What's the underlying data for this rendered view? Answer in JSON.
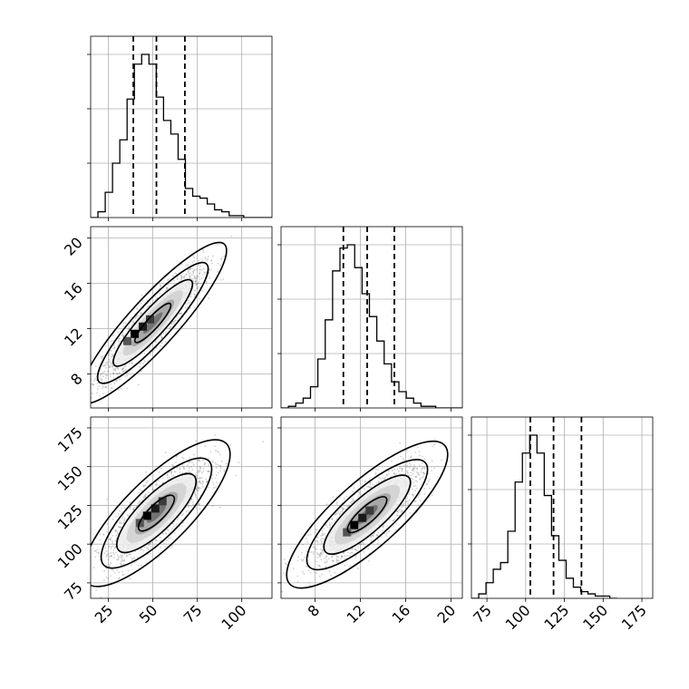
{
  "chart_data": {
    "type": "corner",
    "parameters": [
      {
        "key": "p0",
        "range": [
          15,
          117
        ],
        "ticks": [
          25,
          50,
          75,
          100
        ],
        "tick_labels": [
          "25",
          "50",
          "75",
          "100"
        ],
        "quantiles": [
          39,
          52,
          68
        ],
        "hist": {
          "start": 15,
          "bin_width": 4.1,
          "counts": [
            0,
            3,
            13,
            28,
            40,
            61,
            79,
            84,
            79,
            62,
            50,
            43,
            30,
            15,
            11,
            10,
            7,
            4,
            3,
            1,
            1,
            0,
            0,
            0,
            0
          ]
        }
      },
      {
        "key": "p1",
        "range": [
          5,
          21
        ],
        "ticks": [
          8,
          12,
          16,
          20
        ],
        "tick_labels": [
          "8",
          "12",
          "16",
          "20"
        ],
        "quantiles": [
          10.5,
          12.6,
          15.0
        ],
        "hist": {
          "start": 5,
          "bin_width": 0.65,
          "counts": [
            0,
            1,
            3,
            6,
            13,
            30,
            54,
            84,
            98,
            100,
            86,
            70,
            56,
            41,
            27,
            16,
            10,
            6,
            3,
            1,
            1,
            0,
            0,
            0,
            0
          ]
        }
      },
      {
        "key": "p2",
        "range": [
          65,
          182
        ],
        "ticks": [
          75,
          100,
          125,
          150,
          175
        ],
        "tick_labels": [
          "75",
          "100",
          "125",
          "150",
          "175"
        ],
        "quantiles": [
          103,
          118,
          136
        ],
        "hist": {
          "start": 65,
          "bin_width": 4.7,
          "counts": [
            0,
            2,
            7,
            13,
            16,
            30,
            52,
            65,
            73,
            65,
            46,
            28,
            17,
            9,
            5,
            3,
            2,
            1,
            1,
            0
          ]
        }
      }
    ],
    "pairs": [
      {
        "x": 0,
        "y": 1,
        "center": [
          50,
          12.5
        ],
        "sd": [
          14,
          2.4
        ],
        "rho": 0.9,
        "peak": [
          40,
          11.5
        ]
      },
      {
        "x": 0,
        "y": 2,
        "center": [
          52,
          120
        ],
        "sd": [
          14,
          16
        ],
        "rho": 0.8,
        "peak": [
          47,
          118
        ]
      },
      {
        "x": 1,
        "y": 2,
        "center": [
          12.6,
          119
        ],
        "sd": [
          2.4,
          16
        ],
        "rho": 0.82,
        "peak": [
          11.5,
          112
        ]
      }
    ],
    "samples_per_panel": 1800,
    "levels": [
      0.39,
      0.86,
      1.2,
      1.6
    ],
    "contour_fills": [
      "#ffffff",
      "#eeeeee",
      "#c2c2c2",
      "#8a8a8a",
      "#3a3a3a"
    ],
    "grid": true,
    "legend": "none"
  }
}
